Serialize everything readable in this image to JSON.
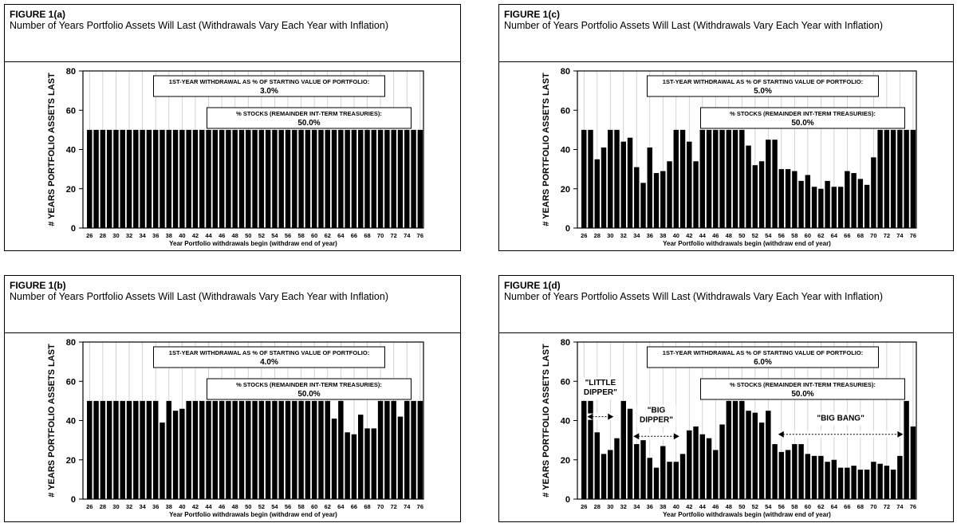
{
  "figures": [
    {
      "label": "FIGURE 1(a)",
      "title": "Number of Years Portfolio Assets Will Last (Withdrawals Vary Each Year with Inflation)",
      "withdrawal_box": {
        "line1": "1ST-YEAR WITHDRAWAL AS % OF STARTING VALUE OF PORTFOLIO:",
        "line2": "3.0%"
      },
      "stocks_box": {
        "line1": "% STOCKS (REMAINDER INT-TERM TREASURIES):",
        "line2": "50.0%"
      },
      "annotations": [],
      "chart_data": {
        "type": "bar",
        "title": "",
        "ylabel": "# YEARS PORTFOLIO ASSETS LAST",
        "xlabel": "Year Portfolio withdrawals begin (withdraw end of year)",
        "ylim": [
          0,
          80
        ],
        "yticks": [
          0,
          20,
          40,
          60,
          80
        ],
        "grid": "vertical",
        "categories": [
          26,
          27,
          28,
          29,
          30,
          31,
          32,
          33,
          34,
          35,
          36,
          37,
          38,
          39,
          40,
          41,
          42,
          43,
          44,
          45,
          46,
          47,
          48,
          49,
          50,
          51,
          52,
          53,
          54,
          55,
          56,
          57,
          58,
          59,
          60,
          61,
          62,
          63,
          64,
          65,
          66,
          67,
          68,
          69,
          70,
          71,
          72,
          73,
          74,
          75,
          76
        ],
        "tick_labels": [
          "26",
          "28",
          "30",
          "32",
          "34",
          "36",
          "38",
          "40",
          "42",
          "44",
          "46",
          "48",
          "50",
          "52",
          "54",
          "56",
          "58",
          "60",
          "62",
          "64",
          "66",
          "68",
          "70",
          "72",
          "74",
          "76"
        ],
        "values": [
          50,
          50,
          50,
          50,
          50,
          50,
          50,
          50,
          50,
          50,
          50,
          50,
          50,
          50,
          50,
          50,
          50,
          50,
          50,
          50,
          50,
          50,
          50,
          50,
          50,
          50,
          50,
          50,
          50,
          50,
          50,
          50,
          50,
          50,
          50,
          50,
          50,
          50,
          50,
          50,
          50,
          50,
          50,
          50,
          50,
          50,
          50,
          50,
          50,
          50,
          50
        ]
      }
    },
    {
      "label": "FIGURE 1(c)",
      "title": "Number of Years Portfolio Assets Will Last (Withdrawals Vary Each Year with Inflation)",
      "withdrawal_box": {
        "line1": "1ST-YEAR WITHDRAWAL AS % OF STARTING VALUE OF PORTFOLIO:",
        "line2": "5.0%"
      },
      "stocks_box": {
        "line1": "% STOCKS (REMAINDER INT-TERM TREASURIES):",
        "line2": "50.0%"
      },
      "annotations": [],
      "chart_data": {
        "type": "bar",
        "title": "",
        "ylabel": "# YEARS PORTFOLIO ASSETS LAST",
        "xlabel": "Year Portfolio withdrawals begin (withdraw end of year)",
        "ylim": [
          0,
          80
        ],
        "yticks": [
          0,
          20,
          40,
          60,
          80
        ],
        "grid": "vertical",
        "categories": [
          26,
          27,
          28,
          29,
          30,
          31,
          32,
          33,
          34,
          35,
          36,
          37,
          38,
          39,
          40,
          41,
          42,
          43,
          44,
          45,
          46,
          47,
          48,
          49,
          50,
          51,
          52,
          53,
          54,
          55,
          56,
          57,
          58,
          59,
          60,
          61,
          62,
          63,
          64,
          65,
          66,
          67,
          68,
          69,
          70,
          71,
          72,
          73,
          74,
          75,
          76
        ],
        "tick_labels": [
          "26",
          "28",
          "30",
          "32",
          "34",
          "36",
          "38",
          "40",
          "42",
          "44",
          "46",
          "48",
          "50",
          "52",
          "54",
          "56",
          "58",
          "60",
          "62",
          "64",
          "66",
          "68",
          "70",
          "72",
          "74",
          "76"
        ],
        "values": [
          50,
          50,
          35,
          41,
          50,
          50,
          44,
          46,
          31,
          23,
          41,
          28,
          29,
          34,
          50,
          50,
          44,
          34,
          50,
          50,
          50,
          50,
          50,
          50,
          50,
          42,
          32,
          34,
          45,
          45,
          30,
          30,
          29,
          24,
          27,
          21,
          20,
          24,
          21,
          21,
          29,
          28,
          25,
          22,
          36,
          50,
          50,
          50,
          50,
          50,
          50
        ]
      }
    },
    {
      "label": "FIGURE 1(b)",
      "title": "Number of Years Portfolio Assets Will Last (Withdrawals Vary Each Year with Inflation)",
      "withdrawal_box": {
        "line1": "1ST-YEAR WITHDRAWAL AS % OF STARTING VALUE OF PORTFOLIO:",
        "line2": "4.0%"
      },
      "stocks_box": {
        "line1": "% STOCKS (REMAINDER INT-TERM TREASURIES):",
        "line2": "50.0%"
      },
      "annotations": [],
      "chart_data": {
        "type": "bar",
        "title": "",
        "ylabel": "# YEARS PORTFOLIO ASSETS LAST",
        "xlabel": "Year Portfolio withdrawals begin (withdraw end of year)",
        "ylim": [
          0,
          80
        ],
        "yticks": [
          0,
          20,
          40,
          60,
          80
        ],
        "grid": "vertical",
        "categories": [
          26,
          27,
          28,
          29,
          30,
          31,
          32,
          33,
          34,
          35,
          36,
          37,
          38,
          39,
          40,
          41,
          42,
          43,
          44,
          45,
          46,
          47,
          48,
          49,
          50,
          51,
          52,
          53,
          54,
          55,
          56,
          57,
          58,
          59,
          60,
          61,
          62,
          63,
          64,
          65,
          66,
          67,
          68,
          69,
          70,
          71,
          72,
          73,
          74,
          75,
          76
        ],
        "tick_labels": [
          "26",
          "28",
          "30",
          "32",
          "34",
          "36",
          "38",
          "40",
          "42",
          "44",
          "46",
          "48",
          "50",
          "52",
          "54",
          "56",
          "58",
          "60",
          "62",
          "64",
          "66",
          "68",
          "70",
          "72",
          "74",
          "76"
        ],
        "values": [
          50,
          50,
          50,
          50,
          50,
          50,
          50,
          50,
          50,
          50,
          50,
          39,
          50,
          45,
          46,
          50,
          50,
          50,
          50,
          50,
          50,
          50,
          50,
          50,
          50,
          50,
          50,
          50,
          50,
          50,
          50,
          50,
          50,
          50,
          50,
          50,
          50,
          41,
          50,
          34,
          33,
          43,
          36,
          36,
          50,
          50,
          50,
          42,
          50,
          50,
          50
        ]
      }
    },
    {
      "label": "FIGURE 1(d)",
      "title": "Number of Years Portfolio Assets Will Last (Withdrawals Vary Each Year with Inflation)",
      "withdrawal_box": {
        "line1": "1ST-YEAR WITHDRAWAL AS % OF STARTING VALUE OF PORTFOLIO:",
        "line2": "6.0%"
      },
      "stocks_box": {
        "line1": "% STOCKS (REMAINDER INT-TERM TREASURIES):",
        "line2": "50.0%"
      },
      "annotations": [
        {
          "lines": [
            "\"LITTLE",
            "DIPPER\""
          ],
          "from": 26,
          "to": 31,
          "y": 42,
          "text_y": 58
        },
        {
          "lines": [
            "\"BIG",
            "DIPPER\""
          ],
          "from": 33,
          "to": 41,
          "y": 32,
          "text_y": 44
        },
        {
          "lines": [
            "\"BIG BANG\""
          ],
          "from": 55,
          "to": 75,
          "y": 33,
          "text_y": 40
        }
      ],
      "chart_data": {
        "type": "bar",
        "title": "",
        "ylabel": "# YEARS PORTFOLIO ASSETS LAST",
        "xlabel": "Year Portfolio withdrawals begin (withdraw end of year)",
        "ylim": [
          0,
          80
        ],
        "yticks": [
          0,
          20,
          40,
          60,
          80
        ],
        "grid": "vertical",
        "categories": [
          26,
          27,
          28,
          29,
          30,
          31,
          32,
          33,
          34,
          35,
          36,
          37,
          38,
          39,
          40,
          41,
          42,
          43,
          44,
          45,
          46,
          47,
          48,
          49,
          50,
          51,
          52,
          53,
          54,
          55,
          56,
          57,
          58,
          59,
          60,
          61,
          62,
          63,
          64,
          65,
          66,
          67,
          68,
          69,
          70,
          71,
          72,
          73,
          74,
          75,
          76
        ],
        "tick_labels": [
          "26",
          "28",
          "30",
          "32",
          "34",
          "36",
          "38",
          "40",
          "42",
          "44",
          "46",
          "48",
          "50",
          "52",
          "54",
          "56",
          "58",
          "60",
          "62",
          "64",
          "66",
          "68",
          "70",
          "72",
          "74",
          "76"
        ],
        "values": [
          50,
          50,
          34,
          23,
          25,
          31,
          50,
          46,
          28,
          30,
          21,
          16,
          27,
          19,
          19,
          23,
          35,
          37,
          33,
          31,
          25,
          38,
          50,
          50,
          50,
          45,
          44,
          39,
          45,
          28,
          24,
          25,
          28,
          28,
          23,
          22,
          22,
          19,
          20,
          16,
          16,
          17,
          15,
          15,
          19,
          18,
          17,
          15,
          22,
          50,
          37
        ]
      }
    }
  ]
}
